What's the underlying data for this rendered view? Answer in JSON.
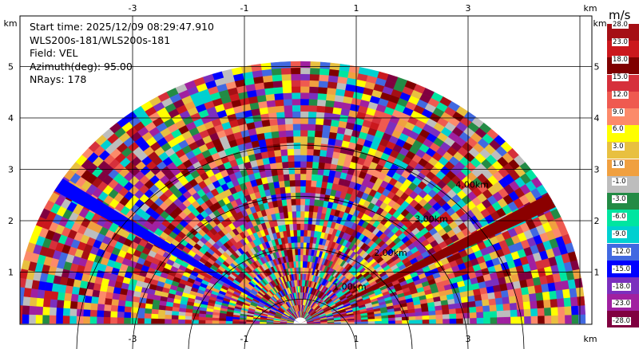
{
  "info": {
    "start_time": "Start time: 2025/12/09 08:29:47.910",
    "instrument": "WLS200s-181/WLS200s-181",
    "field": "Field: VEL",
    "azimuth": "Azimuth(deg): 95.00",
    "nrays": "NRays: 178"
  },
  "chart_data": {
    "type": "heatmap",
    "subtype": "RHI radar sweep (wind lidar radial velocity)",
    "field": "VEL",
    "azimuth_deg": 95.0,
    "n_rays": 178,
    "x_range_km": [
      -5,
      5
    ],
    "y_range_km": [
      0,
      5.7
    ],
    "x_ticks": [
      -3,
      -1,
      1,
      3
    ],
    "y_ticks": [
      1,
      2,
      3,
      4,
      5
    ],
    "x_unit_label": "km",
    "y_unit_label": "km",
    "max_range_km": 5.1,
    "range_rings_km": [
      1,
      2,
      3,
      4
    ],
    "ring_labels": [
      "1.00km",
      "2.00km",
      "3.00km",
      "4.00km"
    ],
    "grid": true,
    "colorbar": {
      "unit": "m/s",
      "levels": [
        "28.0",
        "23.0",
        "18.0",
        "15.0",
        "12.0",
        "9.0",
        "6.0",
        "3.0",
        "1.0",
        "-1.0",
        "-3.0",
        "-6.0",
        "-9.0",
        "-12.0",
        "-15.0",
        "-18.0",
        "-23.0",
        "-28.0"
      ],
      "colors": [
        "#a50f15",
        "#cb181d",
        "#7f0000",
        "#d6303b",
        "#ef5a50",
        "#fc8a6a",
        "#ffff00",
        "#e8c040",
        "#f0a040",
        "#bdbdbd",
        "#238b45",
        "#00e5a0",
        "#00d0d0",
        "#4169e1",
        "#0000ff",
        "#7b2fbe",
        "#a020a0",
        "#800040"
      ]
    },
    "strong_beams": [
      {
        "elevation_deg": 148,
        "velocity_ms": -15.0,
        "color": "#0000ff"
      },
      {
        "elevation_deg": 28,
        "velocity_ms": 23.0,
        "color": "#8b0000"
      }
    ]
  }
}
